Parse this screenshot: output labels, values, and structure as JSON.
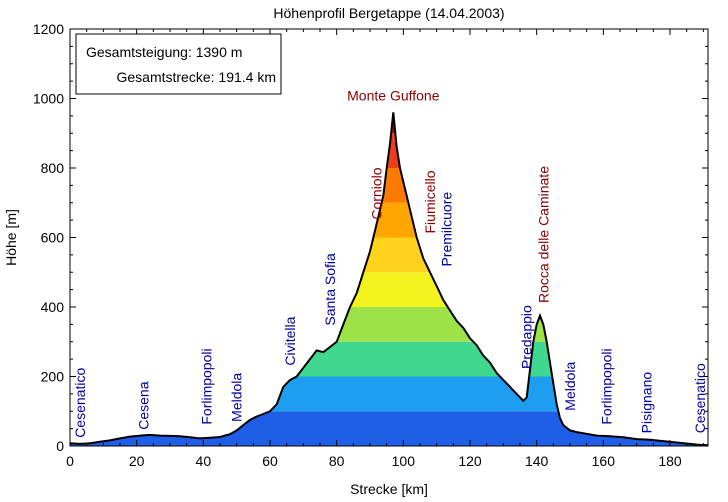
{
  "chart_data": {
    "type": "area",
    "title": "Höhenprofil Bergetappe (14.04.2003)",
    "xlabel": "Strecke [km]",
    "ylabel": "Höhe [m]",
    "xlim": [
      0,
      191.4
    ],
    "ylim": [
      0,
      1200
    ],
    "x_ticks": [
      "0",
      "20",
      "40",
      "60",
      "80",
      "100",
      "120",
      "140",
      "160",
      "180"
    ],
    "y_ticks": [
      "0",
      "200",
      "400",
      "600",
      "800",
      "1000",
      "1200"
    ],
    "legend": {
      "position": "top-left",
      "lines": [
        "Gesamtsteigung: 1390 m",
        "Gesamtstrecke: 191.4 km"
      ]
    },
    "elevation_bands": [
      {
        "from": 0,
        "to": 100,
        "color": "#1f5ee6"
      },
      {
        "from": 100,
        "to": 200,
        "color": "#1e9ef0"
      },
      {
        "from": 200,
        "to": 300,
        "color": "#3fd88e"
      },
      {
        "from": 300,
        "to": 400,
        "color": "#9ee24a"
      },
      {
        "from": 400,
        "to": 500,
        "color": "#f2f21e"
      },
      {
        "from": 500,
        "to": 600,
        "color": "#ffd21e"
      },
      {
        "from": 600,
        "to": 700,
        "color": "#ffa500"
      },
      {
        "from": 700,
        "to": 800,
        "color": "#ff7a00"
      },
      {
        "from": 800,
        "to": 900,
        "color": "#f03c1e"
      },
      {
        "from": 900,
        "to": 1000,
        "color": "#d00000"
      }
    ],
    "profile": [
      [
        0,
        8
      ],
      [
        3,
        6
      ],
      [
        6,
        8
      ],
      [
        9,
        12
      ],
      [
        12,
        16
      ],
      [
        15,
        22
      ],
      [
        18,
        27
      ],
      [
        21,
        30
      ],
      [
        24,
        32
      ],
      [
        27,
        30
      ],
      [
        30,
        29
      ],
      [
        33,
        28
      ],
      [
        36,
        25
      ],
      [
        39,
        22
      ],
      [
        42,
        24
      ],
      [
        45,
        26
      ],
      [
        48,
        34
      ],
      [
        50,
        45
      ],
      [
        52,
        60
      ],
      [
        54,
        75
      ],
      [
        56,
        85
      ],
      [
        58,
        92
      ],
      [
        60,
        100
      ],
      [
        62,
        120
      ],
      [
        64,
        170
      ],
      [
        66,
        190
      ],
      [
        68,
        200
      ],
      [
        70,
        225
      ],
      [
        72,
        250
      ],
      [
        74,
        275
      ],
      [
        76,
        270
      ],
      [
        78,
        285
      ],
      [
        80,
        300
      ],
      [
        82,
        350
      ],
      [
        84,
        400
      ],
      [
        86,
        440
      ],
      [
        88,
        500
      ],
      [
        90,
        560
      ],
      [
        92,
        640
      ],
      [
        94,
        720
      ],
      [
        95,
        800
      ],
      [
        96,
        870
      ],
      [
        97,
        960
      ],
      [
        98,
        860
      ],
      [
        99,
        800
      ],
      [
        100,
        760
      ],
      [
        101,
        720
      ],
      [
        102,
        680
      ],
      [
        104,
        600
      ],
      [
        106,
        540
      ],
      [
        108,
        500
      ],
      [
        110,
        460
      ],
      [
        112,
        420
      ],
      [
        114,
        390
      ],
      [
        116,
        360
      ],
      [
        118,
        340
      ],
      [
        120,
        310
      ],
      [
        122,
        290
      ],
      [
        124,
        260
      ],
      [
        126,
        240
      ],
      [
        128,
        210
      ],
      [
        130,
        190
      ],
      [
        132,
        170
      ],
      [
        134,
        150
      ],
      [
        136,
        130
      ],
      [
        137,
        140
      ],
      [
        138,
        220
      ],
      [
        139,
        300
      ],
      [
        140,
        350
      ],
      [
        141,
        375
      ],
      [
        142,
        350
      ],
      [
        143,
        300
      ],
      [
        144,
        240
      ],
      [
        145,
        180
      ],
      [
        146,
        120
      ],
      [
        147,
        80
      ],
      [
        148,
        60
      ],
      [
        150,
        45
      ],
      [
        152,
        40
      ],
      [
        155,
        35
      ],
      [
        158,
        30
      ],
      [
        162,
        28
      ],
      [
        166,
        25
      ],
      [
        170,
        20
      ],
      [
        174,
        18
      ],
      [
        178,
        14
      ],
      [
        182,
        10
      ],
      [
        186,
        6
      ],
      [
        188,
        4
      ],
      [
        191.4,
        2
      ]
    ],
    "places": [
      {
        "name": "Cesenatico",
        "km": 3,
        "anchor_elev": 12,
        "type": "town"
      },
      {
        "name": "Cesena",
        "km": 22,
        "anchor_elev": 35,
        "type": "town"
      },
      {
        "name": "Forlimpopoli",
        "km": 41,
        "anchor_elev": 50,
        "type": "town"
      },
      {
        "name": "Meldola",
        "km": 50,
        "anchor_elev": 58,
        "type": "town"
      },
      {
        "name": "Civitella",
        "km": 66,
        "anchor_elev": 220,
        "type": "town"
      },
      {
        "name": "Santa Sofia",
        "km": 78,
        "anchor_elev": 335,
        "type": "town"
      },
      {
        "name": "Corniolo",
        "km": 92,
        "anchor_elev": 640,
        "type": "climb"
      },
      {
        "name": "Fiumicello",
        "km": 108,
        "anchor_elev": 600,
        "type": "climb"
      },
      {
        "name": "Premilcuore",
        "km": 113,
        "anchor_elev": 505,
        "type": "town"
      },
      {
        "name": "Predappio",
        "km": 137,
        "anchor_elev": 210,
        "type": "town"
      },
      {
        "name": "Rocca delle Caminate",
        "km": 142,
        "anchor_elev": 400,
        "type": "climb"
      },
      {
        "name": "Meldola",
        "km": 150,
        "anchor_elev": 90,
        "type": "town"
      },
      {
        "name": "Forlimpopoli",
        "km": 161,
        "anchor_elev": 50,
        "type": "town"
      },
      {
        "name": "Pisignano",
        "km": 173,
        "anchor_elev": 25,
        "type": "town"
      },
      {
        "name": "Cesenatico",
        "km": 189,
        "anchor_elev": 25,
        "type": "town"
      }
    ],
    "summit": {
      "name": "Monte Guffone",
      "km": 97,
      "elev": 960
    },
    "colors": {
      "town": "#0000a0",
      "climb": "#8b0000",
      "outline": "#000000"
    }
  }
}
